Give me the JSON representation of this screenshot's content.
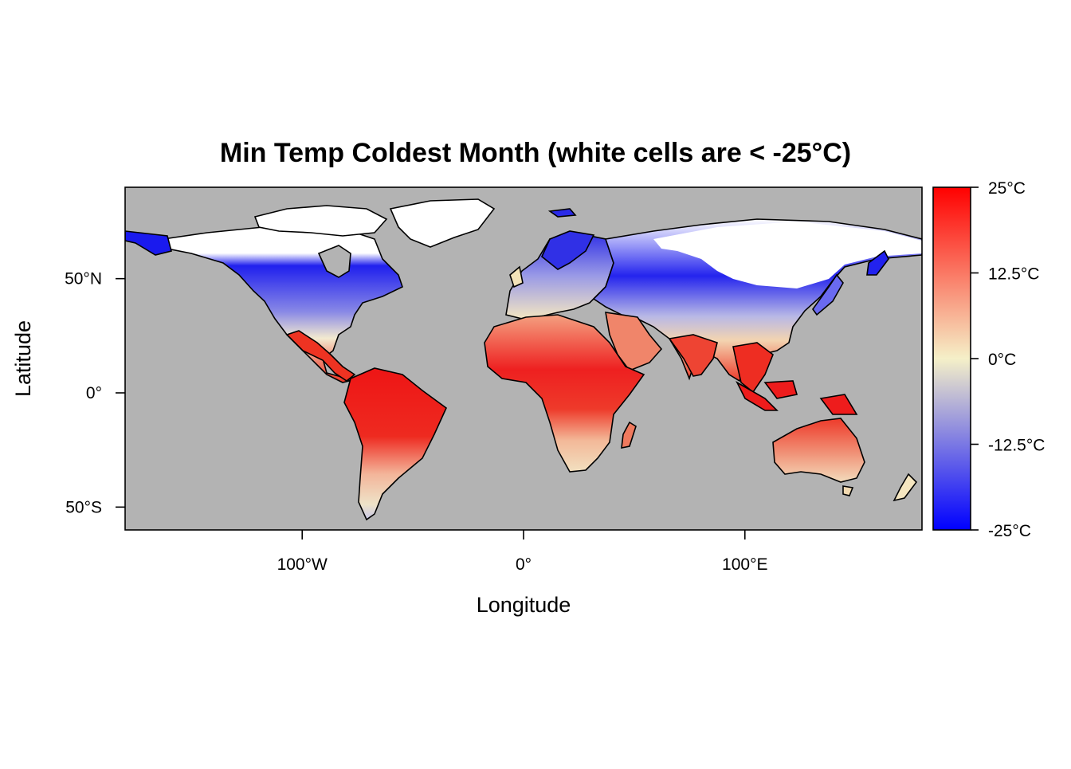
{
  "figure": {
    "title": "Min Temp Coldest Month (white cells are < -25°C)",
    "xlabel": "Longitude",
    "ylabel": "Latitude"
  },
  "map": {
    "projection": "equirectangular",
    "lon_range": [
      -180,
      180
    ],
    "lat_range": [
      -60,
      90
    ],
    "background_color": "#b3b3b3",
    "coastline_color": "#000000",
    "below_min_color": "#ffffff",
    "x_ticks": [
      {
        "value": -100,
        "label": "100°W"
      },
      {
        "value": 0,
        "label": "0°"
      },
      {
        "value": 100,
        "label": "100°E"
      }
    ],
    "y_ticks": [
      {
        "value": 50,
        "label": "50°N"
      },
      {
        "value": 0,
        "label": "0°"
      },
      {
        "value": -50,
        "label": "50°S"
      }
    ]
  },
  "colorbar": {
    "min": -25,
    "max": 25,
    "unit": "°C",
    "colors": {
      "low": "#0000ff",
      "mid": "#f5f0c8",
      "high": "#ff0000"
    },
    "ticks": [
      {
        "value": 25,
        "label": "25°C"
      },
      {
        "value": 12.5,
        "label": "12.5°C"
      },
      {
        "value": 0,
        "label": "0°C"
      },
      {
        "value": -12.5,
        "label": "-12.5°C"
      },
      {
        "value": -25,
        "label": "-25°C"
      }
    ]
  }
}
